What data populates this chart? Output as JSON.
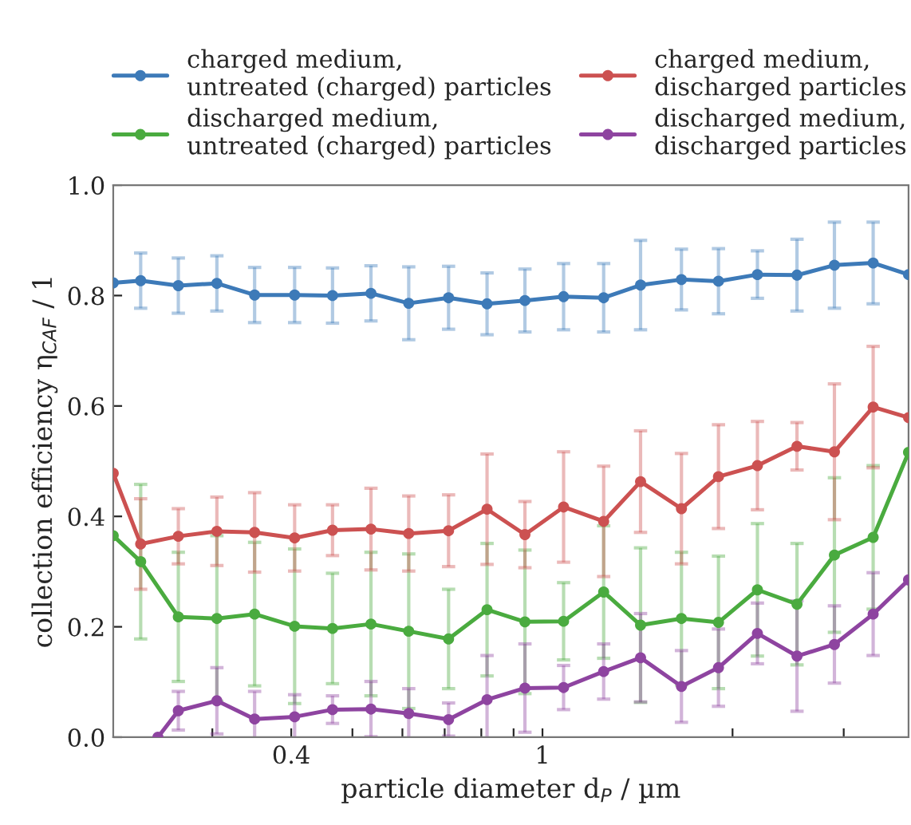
{
  "chart_data": {
    "type": "line",
    "xlabel": "particle diameter d$_{P}$ / µm",
    "ylabel": "collection efficiency η$_{CAF}$ / 1",
    "log": "x",
    "xlim": [
      0.209,
      3.8
    ],
    "xticks": [
      {
        "value": 0.3,
        "label": null
      },
      {
        "value": 0.4,
        "label": "0.4"
      },
      {
        "value": 0.5,
        "label": null
      },
      {
        "value": 0.6,
        "label": null
      },
      {
        "value": 0.7,
        "label": null
      },
      {
        "value": 0.8,
        "label": null
      },
      {
        "value": 0.9,
        "label": null
      },
      {
        "value": 1,
        "label": "1"
      },
      {
        "value": 2,
        "label": null
      },
      {
        "value": 3,
        "label": null
      }
    ],
    "ylim": [
      0,
      1
    ],
    "yticks": [
      {
        "value": 0,
        "label": "0.0"
      },
      {
        "value": 0.2,
        "label": "0.2"
      },
      {
        "value": 0.4,
        "label": "0.4"
      },
      {
        "value": 0.6,
        "label": "0.6"
      },
      {
        "value": 0.8,
        "label": "0.8"
      },
      {
        "value": 1,
        "label": "1.0"
      }
    ],
    "grid": false,
    "legend": "top",
    "marker": "circle",
    "line_style": "solid",
    "series": [
      {
        "name": "charged medium,\nuntreated (charged) particles",
        "color": "#3d7ab8",
        "x": [
          0.209,
          0.231,
          0.265,
          0.305,
          0.35,
          0.405,
          0.465,
          0.535,
          0.614,
          0.71,
          0.817,
          0.938,
          1.08,
          1.25,
          1.43,
          1.66,
          1.9,
          2.19,
          2.53,
          2.9,
          3.34,
          3.8
        ],
        "values": [
          0.823,
          0.827,
          0.818,
          0.822,
          0.801,
          0.801,
          0.8,
          0.804,
          0.786,
          0.796,
          0.785,
          0.791,
          0.798,
          0.796,
          0.819,
          0.829,
          0.826,
          0.838,
          0.837,
          0.855,
          0.859,
          0.838
        ],
        "errors": [
          null,
          0.05,
          0.05,
          0.05,
          0.05,
          0.05,
          0.05,
          0.05,
          0.066,
          0.057,
          0.056,
          0.057,
          0.06,
          0.062,
          0.081,
          0.055,
          0.059,
          0.043,
          0.065,
          0.078,
          0.074,
          null
        ]
      },
      {
        "name": "discharged medium,\nuntreated (charged) particles",
        "color": "#4aab3f",
        "x": [
          0.209,
          0.231,
          0.265,
          0.305,
          0.35,
          0.405,
          0.465,
          0.535,
          0.614,
          0.71,
          0.817,
          0.938,
          1.08,
          1.25,
          1.43,
          1.66,
          1.9,
          2.19,
          2.53,
          2.9,
          3.34,
          3.8
        ],
        "values": [
          0.365,
          0.318,
          0.218,
          0.215,
          0.223,
          0.201,
          0.197,
          0.205,
          0.192,
          0.178,
          0.231,
          0.209,
          0.21,
          0.263,
          0.203,
          0.215,
          0.208,
          0.267,
          0.241,
          0.33,
          0.362,
          0.516
        ],
        "errors": [
          null,
          0.14,
          0.117,
          0.15,
          0.13,
          0.14,
          0.1,
          0.13,
          0.14,
          0.09,
          0.12,
          0.13,
          0.07,
          0.12,
          0.14,
          0.12,
          0.12,
          0.12,
          0.11,
          0.14,
          0.13,
          null
        ]
      },
      {
        "name": "charged medium,\ndischarged particles",
        "color": "#cc5151",
        "x": [
          0.209,
          0.231,
          0.265,
          0.305,
          0.35,
          0.405,
          0.465,
          0.535,
          0.614,
          0.71,
          0.817,
          0.938,
          1.08,
          1.25,
          1.43,
          1.66,
          1.9,
          2.19,
          2.53,
          2.9,
          3.34,
          3.8
        ],
        "values": [
          0.478,
          0.35,
          0.364,
          0.373,
          0.371,
          0.361,
          0.375,
          0.377,
          0.369,
          0.374,
          0.413,
          0.367,
          0.417,
          0.391,
          0.463,
          0.414,
          0.472,
          0.492,
          0.527,
          0.517,
          0.598,
          0.579
        ],
        "errors": [
          null,
          0.082,
          0.05,
          0.062,
          0.072,
          0.06,
          0.046,
          0.074,
          0.068,
          0.065,
          0.1,
          0.06,
          0.1,
          0.1,
          0.092,
          0.1,
          0.094,
          0.08,
          0.043,
          0.123,
          0.11,
          null
        ]
      },
      {
        "name": "discharged medium,\ndischarged particles",
        "color": "#8e44a0",
        "x": [
          0.246,
          0.265,
          0.305,
          0.35,
          0.405,
          0.465,
          0.535,
          0.614,
          0.71,
          0.817,
          0.938,
          1.08,
          1.25,
          1.43,
          1.66,
          1.9,
          2.19,
          2.53,
          2.9,
          3.34,
          3.8
        ],
        "values": [
          0,
          0.048,
          0.066,
          0.033,
          0.037,
          0.05,
          0.051,
          0.043,
          0.032,
          0.068,
          0.089,
          0.09,
          0.119,
          0.144,
          0.092,
          0.126,
          0.188,
          0.147,
          0.168,
          0.223,
          0.285
        ],
        "errors": [
          null,
          0.035,
          0.06,
          0.05,
          0.04,
          0.025,
          0.05,
          0.045,
          0.03,
          0.08,
          0.08,
          0.04,
          0.05,
          0.08,
          0.065,
          0.07,
          0.055,
          0.1,
          0.07,
          0.075,
          null
        ]
      }
    ]
  }
}
